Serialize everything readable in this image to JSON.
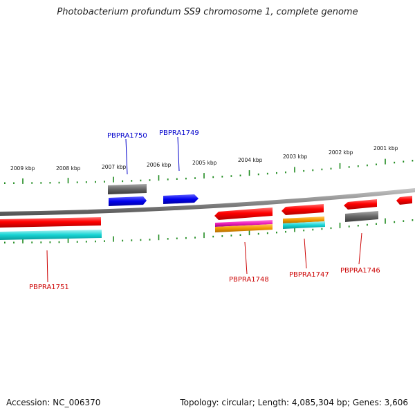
{
  "title": "Photobacterium profundum SS9 chromosome 1, complete genome",
  "footer": {
    "accession": "Accession: NC_006370",
    "topology": "Topology: circular; Length: 4,085,304 bp; Genes: 3,606"
  },
  "colors": {
    "backbone": "#8a8a8a",
    "tick": "#1f8a1f",
    "cds_red": "#ff0000",
    "cds_cyan": "#18d4d4",
    "blue_feature": "#0000ee",
    "gray_feature": "#666666",
    "orange_feature": "#f29b00",
    "magenta_feature": "#ee22bb",
    "label_blue": "#0000cc",
    "label_red": "#cc0000"
  },
  "kbp_labels": [
    "2009 kbp",
    "2008 kbp",
    "2007 kbp",
    "2006 kbp",
    "2005 kbp",
    "2004 kbp",
    "2003 kbp",
    "2002 kbp",
    "2001 kbp"
  ],
  "gene_labels": [
    {
      "name": "PBPRA1750",
      "strand": "forward"
    },
    {
      "name": "PBPRA1749",
      "strand": "forward"
    },
    {
      "name": "PBPRA1751",
      "strand": "reverse"
    },
    {
      "name": "PBPRA1748",
      "strand": "reverse"
    },
    {
      "name": "PBPRA1747",
      "strand": "reverse"
    },
    {
      "name": "PBPRA1746",
      "strand": "reverse"
    }
  ]
}
